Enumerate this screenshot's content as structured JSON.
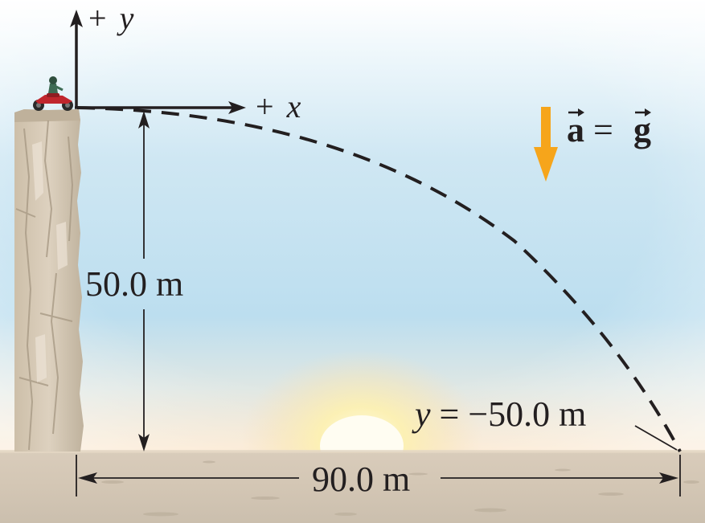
{
  "axes": {
    "y_label_sign": "+",
    "y_label_var": "y",
    "x_label_sign": "+",
    "x_label_var": "x"
  },
  "acceleration": {
    "lhs": "a",
    "equals": "=",
    "rhs": "g",
    "arrow_color": "#f6a51b"
  },
  "dimensions": {
    "height": "50.0 m",
    "distance": "90.0 m",
    "landing_var": "y",
    "landing_value": " = −50.0 m"
  },
  "colors": {
    "sky_top": "#ffffff",
    "sky_mid": "#cfe7f3",
    "sky_low": "#b9dcee",
    "horizon_glow": "#fde9c8",
    "ground": "#d6cab9",
    "cliff": "#d3c6b2",
    "sun": "#fff8d8",
    "ink": "#231f20"
  },
  "icons": {
    "rider": "motorcycle-rider-icon",
    "cliff": "cliff-rock-icon",
    "sun": "setting-sun-icon"
  }
}
